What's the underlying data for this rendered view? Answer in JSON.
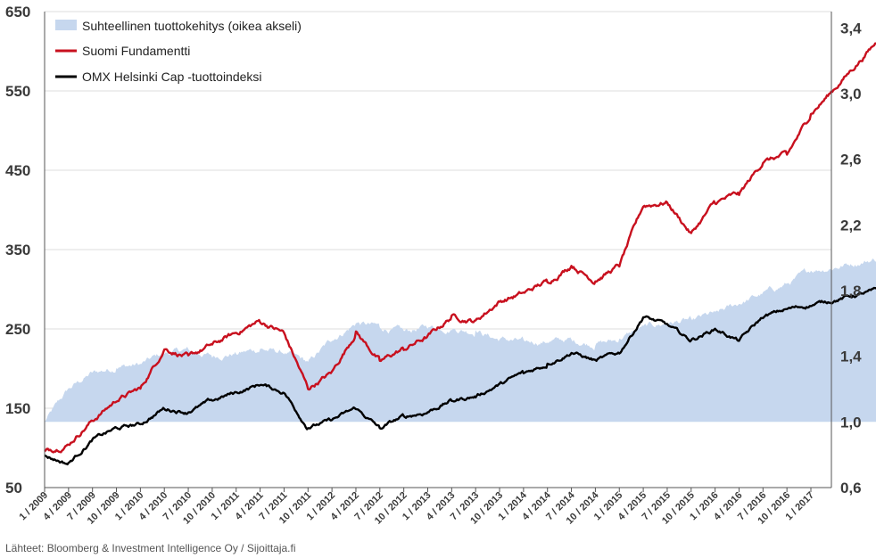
{
  "chart_data": {
    "type": "line",
    "colors": {
      "area": "#c6d7ee",
      "fundamentti": "#c8101e",
      "omx": "#000000",
      "grid": "#dddddd",
      "axis": "#555555"
    },
    "left_axis": {
      "ylim": [
        50,
        650
      ],
      "ticks": [
        "650",
        "550",
        "450",
        "350",
        "250",
        "150",
        "50"
      ]
    },
    "right_axis": {
      "ylim": [
        0.6,
        3.5
      ],
      "ticks": [
        "3,4",
        "3,0",
        "2,6",
        "2,2",
        "1,8",
        "1,4",
        "1,0",
        "0,6"
      ]
    },
    "x_tick_labels": [
      "1 / 2009",
      "4 / 2009",
      "7 / 2009",
      "10 / 2009",
      "1 / 2010",
      "4 / 2010",
      "7 / 2010",
      "10 / 2010",
      "1 / 2011",
      "4 / 2011",
      "7 / 2011",
      "10 / 2011",
      "1 / 2012",
      "4 / 2012",
      "7 / 2012",
      "10 / 2012",
      "1 / 2013",
      "4 / 2013",
      "7 / 2013",
      "10 / 2013",
      "1 / 2014",
      "4 / 2014",
      "7 / 2014",
      "10 / 2014",
      "1 / 2015",
      "4 / 2015",
      "7 / 2015",
      "10 / 2015",
      "1 / 2016",
      "4 / 2016",
      "7 / 2016",
      "10 / 2016",
      "1 / 2017"
    ],
    "legend_position": "top-left",
    "series": [
      {
        "name": "Suhteellinen tuottokehitys (oikea akseli)",
        "kind": "area",
        "axis": "right",
        "points": [
          [
            "1 / 2009",
            1.0
          ],
          [
            "4 / 2009",
            1.2
          ],
          [
            "7 / 2009",
            1.3
          ],
          [
            "10 / 2009",
            1.33
          ],
          [
            "1 / 2010",
            1.35
          ],
          [
            "4 / 2010",
            1.42
          ],
          [
            "7 / 2010",
            1.44
          ],
          [
            "10 / 2010",
            1.4
          ],
          [
            "1 / 2011",
            1.42
          ],
          [
            "4 / 2011",
            1.44
          ],
          [
            "7 / 2011",
            1.42
          ],
          [
            "10 / 2011",
            1.36
          ],
          [
            "1 / 2012",
            1.5
          ],
          [
            "4 / 2012",
            1.6
          ],
          [
            "7 / 2012",
            1.58
          ],
          [
            "10 / 2012",
            1.55
          ],
          [
            "1 / 2013",
            1.58
          ],
          [
            "4 / 2013",
            1.57
          ],
          [
            "7 / 2013",
            1.55
          ],
          [
            "10 / 2013",
            1.5
          ],
          [
            "1 / 2014",
            1.49
          ],
          [
            "4 / 2014",
            1.49
          ],
          [
            "7 / 2014",
            1.5
          ],
          [
            "10 / 2014",
            1.47
          ],
          [
            "1 / 2015",
            1.5
          ],
          [
            "4 / 2015",
            1.58
          ],
          [
            "7 / 2015",
            1.6
          ],
          [
            "10 / 2015",
            1.62
          ],
          [
            "1 / 2016",
            1.66
          ],
          [
            "4 / 2016",
            1.72
          ],
          [
            "7 / 2016",
            1.78
          ],
          [
            "10 / 2016",
            1.84
          ],
          [
            "1 / 2017",
            1.92
          ],
          [
            "10 / 2017",
            2.0
          ]
        ]
      },
      {
        "name": "Suomi Fundamentti",
        "kind": "line",
        "axis": "left",
        "points": [
          [
            "1 / 2009",
            95
          ],
          [
            "4 / 2009",
            105
          ],
          [
            "7 / 2009",
            135
          ],
          [
            "10 / 2009",
            160
          ],
          [
            "1 / 2010",
            175
          ],
          [
            "4 / 2010",
            225
          ],
          [
            "7 / 2010",
            215
          ],
          [
            "10 / 2010",
            230
          ],
          [
            "1 / 2011",
            245
          ],
          [
            "4 / 2011",
            260
          ],
          [
            "7 / 2011",
            245
          ],
          [
            "10 / 2011",
            175
          ],
          [
            "1 / 2012",
            195
          ],
          [
            "4 / 2012",
            245
          ],
          [
            "7 / 2012",
            210
          ],
          [
            "10 / 2012",
            225
          ],
          [
            "1 / 2013",
            240
          ],
          [
            "4 / 2013",
            265
          ],
          [
            "7 / 2013",
            260
          ],
          [
            "10 / 2013",
            285
          ],
          [
            "1 / 2014",
            295
          ],
          [
            "4 / 2014",
            310
          ],
          [
            "7 / 2014",
            330
          ],
          [
            "10 / 2014",
            310
          ],
          [
            "1 / 2015",
            330
          ],
          [
            "4 / 2015",
            405
          ],
          [
            "7 / 2015",
            410
          ],
          [
            "10 / 2015",
            370
          ],
          [
            "1 / 2016",
            410
          ],
          [
            "4 / 2016",
            420
          ],
          [
            "7 / 2016",
            460
          ],
          [
            "10 / 2016",
            470
          ],
          [
            "1 / 2017",
            520
          ],
          [
            "10 / 2017",
            620
          ]
        ]
      },
      {
        "name": "OMX Helsinki Cap -tuottoindeksi",
        "kind": "line",
        "axis": "left",
        "points": [
          [
            "1 / 2009",
            90
          ],
          [
            "4 / 2009",
            80
          ],
          [
            "7 / 2009",
            110
          ],
          [
            "10 / 2009",
            125
          ],
          [
            "1 / 2010",
            130
          ],
          [
            "4 / 2010",
            150
          ],
          [
            "7 / 2010",
            145
          ],
          [
            "10 / 2010",
            160
          ],
          [
            "1 / 2011",
            170
          ],
          [
            "4 / 2011",
            180
          ],
          [
            "7 / 2011",
            170
          ],
          [
            "10 / 2011",
            125
          ],
          [
            "1 / 2012",
            135
          ],
          [
            "4 / 2012",
            150
          ],
          [
            "7 / 2012",
            125
          ],
          [
            "10 / 2012",
            140
          ],
          [
            "1 / 2013",
            145
          ],
          [
            "4 / 2013",
            160
          ],
          [
            "7 / 2013",
            165
          ],
          [
            "10 / 2013",
            180
          ],
          [
            "1 / 2014",
            195
          ],
          [
            "4 / 2014",
            205
          ],
          [
            "7 / 2014",
            220
          ],
          [
            "10 / 2014",
            210
          ],
          [
            "1 / 2015",
            220
          ],
          [
            "4 / 2015",
            265
          ],
          [
            "7 / 2015",
            255
          ],
          [
            "10 / 2015",
            235
          ],
          [
            "1 / 2016",
            250
          ],
          [
            "4 / 2016",
            235
          ],
          [
            "7 / 2016",
            265
          ],
          [
            "10 / 2016",
            275
          ],
          [
            "1 / 2017",
            280
          ],
          [
            "10 / 2017",
            300
          ]
        ]
      }
    ]
  },
  "footer": {
    "source": "Lähteet: Bloomberg & Investment Intelligence Oy / Sijoittaja.fi"
  }
}
